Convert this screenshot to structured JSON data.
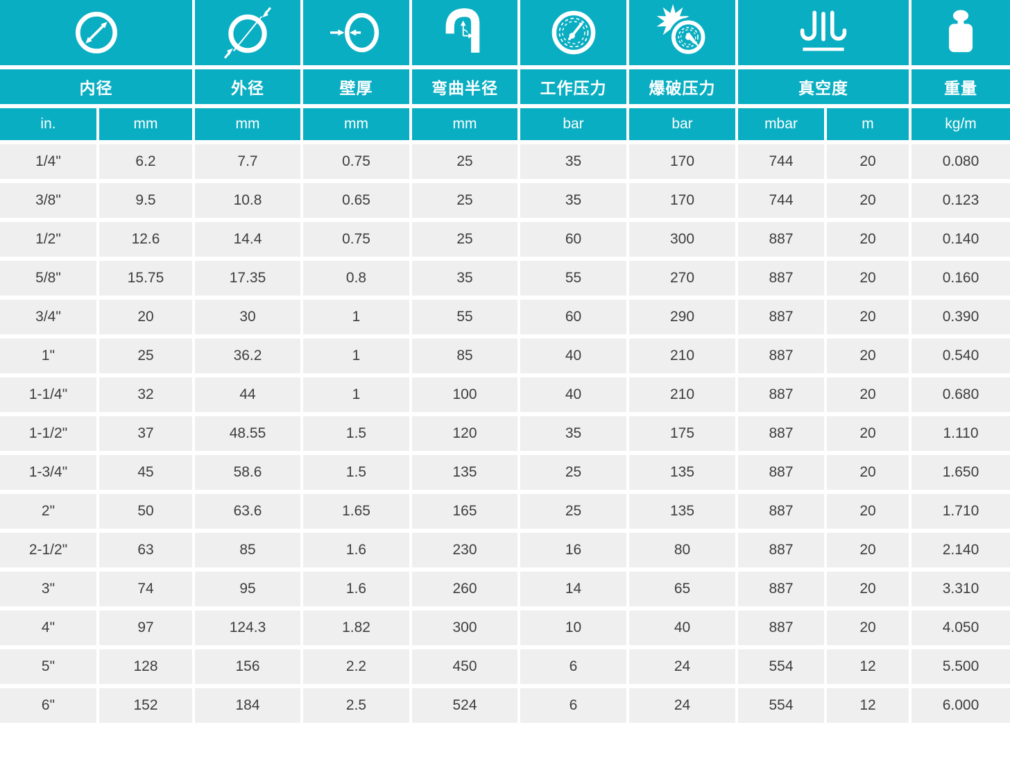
{
  "table": {
    "columns": [
      {
        "name": "内径",
        "icon": "inner-diameter-icon",
        "units": [
          "in.",
          "mm"
        ]
      },
      {
        "name": "外径",
        "icon": "outer-diameter-icon",
        "units": [
          "mm"
        ]
      },
      {
        "name": "壁厚",
        "icon": "wall-thickness-icon",
        "units": [
          "mm"
        ]
      },
      {
        "name": "弯曲半径",
        "icon": "bend-radius-icon",
        "units": [
          "mm"
        ]
      },
      {
        "name": "工作压力",
        "icon": "working-pressure-icon",
        "units": [
          "bar"
        ]
      },
      {
        "name": "爆破压力",
        "icon": "burst-pressure-icon",
        "units": [
          "bar"
        ]
      },
      {
        "name": "真空度",
        "icon": "vacuum-icon",
        "units": [
          "mbar",
          "m"
        ]
      },
      {
        "name": "重量",
        "icon": "weight-icon",
        "units": [
          "kg/m"
        ]
      }
    ],
    "rows": [
      [
        "1/4\"",
        "6.2",
        "7.7",
        "0.75",
        "25",
        "35",
        "170",
        "744",
        "20",
        "0.080"
      ],
      [
        "3/8\"",
        "9.5",
        "10.8",
        "0.65",
        "25",
        "35",
        "170",
        "744",
        "20",
        "0.123"
      ],
      [
        "1/2\"",
        "12.6",
        "14.4",
        "0.75",
        "25",
        "60",
        "300",
        "887",
        "20",
        "0.140"
      ],
      [
        "5/8\"",
        "15.75",
        "17.35",
        "0.8",
        "35",
        "55",
        "270",
        "887",
        "20",
        "0.160"
      ],
      [
        "3/4\"",
        "20",
        "30",
        "1",
        "55",
        "60",
        "290",
        "887",
        "20",
        "0.390"
      ],
      [
        "1\"",
        "25",
        "36.2",
        "1",
        "85",
        "40",
        "210",
        "887",
        "20",
        "0.540"
      ],
      [
        "1-1/4\"",
        "32",
        "44",
        "1",
        "100",
        "40",
        "210",
        "887",
        "20",
        "0.680"
      ],
      [
        "1-1/2\"",
        "37",
        "48.55",
        "1.5",
        "120",
        "35",
        "175",
        "887",
        "20",
        "1.110"
      ],
      [
        "1-3/4\"",
        "45",
        "58.6",
        "1.5",
        "135",
        "25",
        "135",
        "887",
        "20",
        "1.650"
      ],
      [
        "2\"",
        "50",
        "63.6",
        "1.65",
        "165",
        "25",
        "135",
        "887",
        "20",
        "1.710"
      ],
      [
        "2-1/2\"",
        "63",
        "85",
        "1.6",
        "230",
        "16",
        "80",
        "887",
        "20",
        "2.140"
      ],
      [
        "3\"",
        "74",
        "95",
        "1.6",
        "260",
        "14",
        "65",
        "887",
        "20",
        "3.310"
      ],
      [
        "4\"",
        "97",
        "124.3",
        "1.82",
        "300",
        "10",
        "40",
        "887",
        "20",
        "4.050"
      ],
      [
        "5\"",
        "128",
        "156",
        "2.2",
        "450",
        "6",
        "24",
        "554",
        "12",
        "5.500"
      ],
      [
        "6\"",
        "152",
        "184",
        "2.5",
        "524",
        "6",
        "24",
        "554",
        "12",
        "6.000"
      ]
    ]
  },
  "colors": {
    "accent": "#0aaec2",
    "row_bg": "#efefef",
    "text": "#3d3d3d"
  }
}
